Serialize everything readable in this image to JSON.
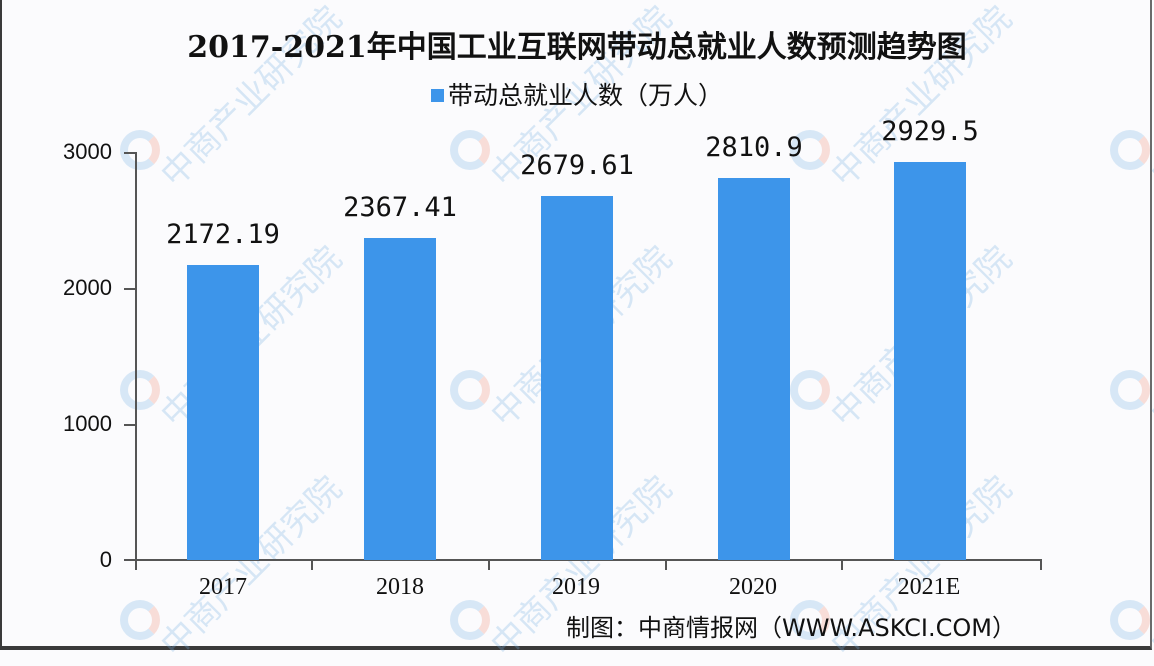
{
  "title": "2017-2021年中国工业互联网带动总就业人数预测趋势图",
  "legend": {
    "label": "带动总就业人数（万人）",
    "color": "#3d95ea"
  },
  "source": "制图：中商情报网（WWW.ASKCI.COM）",
  "watermark": "中商产业研究院",
  "axis": {
    "y_ticks": [
      "3000",
      "2000",
      "1000",
      "0"
    ],
    "x_labels": [
      "2017",
      "2018",
      "2019",
      "2020",
      "2021E"
    ]
  },
  "bars": [
    {
      "category": "2017",
      "label": "2172.19",
      "value": 2172.19
    },
    {
      "category": "2018",
      "label": "2367.41",
      "value": 2367.41
    },
    {
      "category": "2019",
      "label": "2679.61",
      "value": 2679.61
    },
    {
      "category": "2020",
      "label": "2810.9",
      "value": 2810.9
    },
    {
      "category": "2021E",
      "label": "2929.5",
      "value": 2929.5
    }
  ],
  "chart_data": {
    "type": "bar",
    "title": "2017-2021年中国工业互联网带动总就业人数预测趋势图",
    "categories": [
      "2017",
      "2018",
      "2019",
      "2020",
      "2021E"
    ],
    "series": [
      {
        "name": "带动总就业人数（万人）",
        "values": [
          2172.19,
          2367.41,
          2679.61,
          2810.9,
          2929.5
        ],
        "color": "#3d95ea"
      }
    ],
    "xlabel": "",
    "ylabel": "",
    "ylim": [
      0,
      3000
    ],
    "yticks": [
      0,
      1000,
      2000,
      3000
    ],
    "grid": false,
    "legend_position": "top",
    "data_labels": true,
    "source": "制图：中商情报网（WWW.ASKCI.COM）"
  }
}
